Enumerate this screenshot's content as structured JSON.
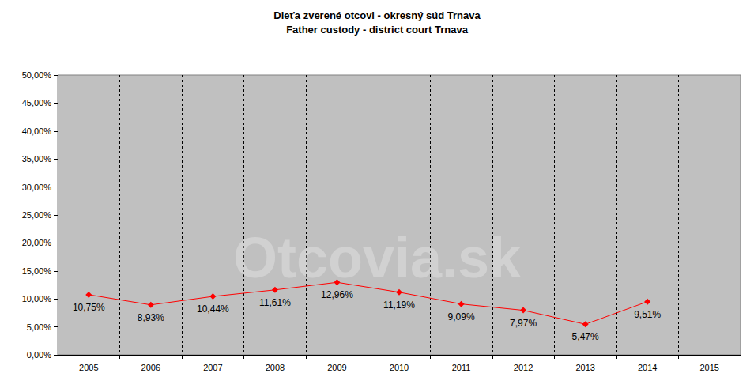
{
  "chart_data": {
    "type": "line",
    "title": "Dieťa zverené otcovi - okresný súd Trnava",
    "subtitle": "Father custody - district court Trnava",
    "annotations": [
      "Otcovia.sk"
    ],
    "categories": [
      "2005",
      "2006",
      "2007",
      "2008",
      "2009",
      "2010",
      "2011",
      "2012",
      "2013",
      "2014",
      "2015"
    ],
    "values": [
      10.75,
      8.93,
      10.44,
      11.61,
      12.96,
      11.19,
      9.09,
      7.97,
      5.47,
      9.51,
      null
    ],
    "value_labels": [
      "10,75%",
      "8,93%",
      "10,44%",
      "11,61%",
      "12,96%",
      "11,19%",
      "9,09%",
      "7,97%",
      "5,47%",
      "9,51%",
      null
    ],
    "color": "#ff0000",
    "marker": "diamond",
    "line_style": "solid",
    "data_labels": true,
    "grid": true,
    "ylim": [
      0,
      50
    ],
    "yticks": [
      {
        "value": 0,
        "label": "0,00%"
      },
      {
        "value": 5,
        "label": "5,00%"
      },
      {
        "value": 10,
        "label": "10,00%"
      },
      {
        "value": 15,
        "label": "15,00%"
      },
      {
        "value": 20,
        "label": "20,00%"
      },
      {
        "value": 25,
        "label": "25,00%"
      },
      {
        "value": 30,
        "label": "30,00%"
      },
      {
        "value": 35,
        "label": "35,00%"
      },
      {
        "value": 40,
        "label": "40,00%"
      },
      {
        "value": 45,
        "label": "45,00%"
      },
      {
        "value": 50,
        "label": "50,00%"
      }
    ]
  }
}
